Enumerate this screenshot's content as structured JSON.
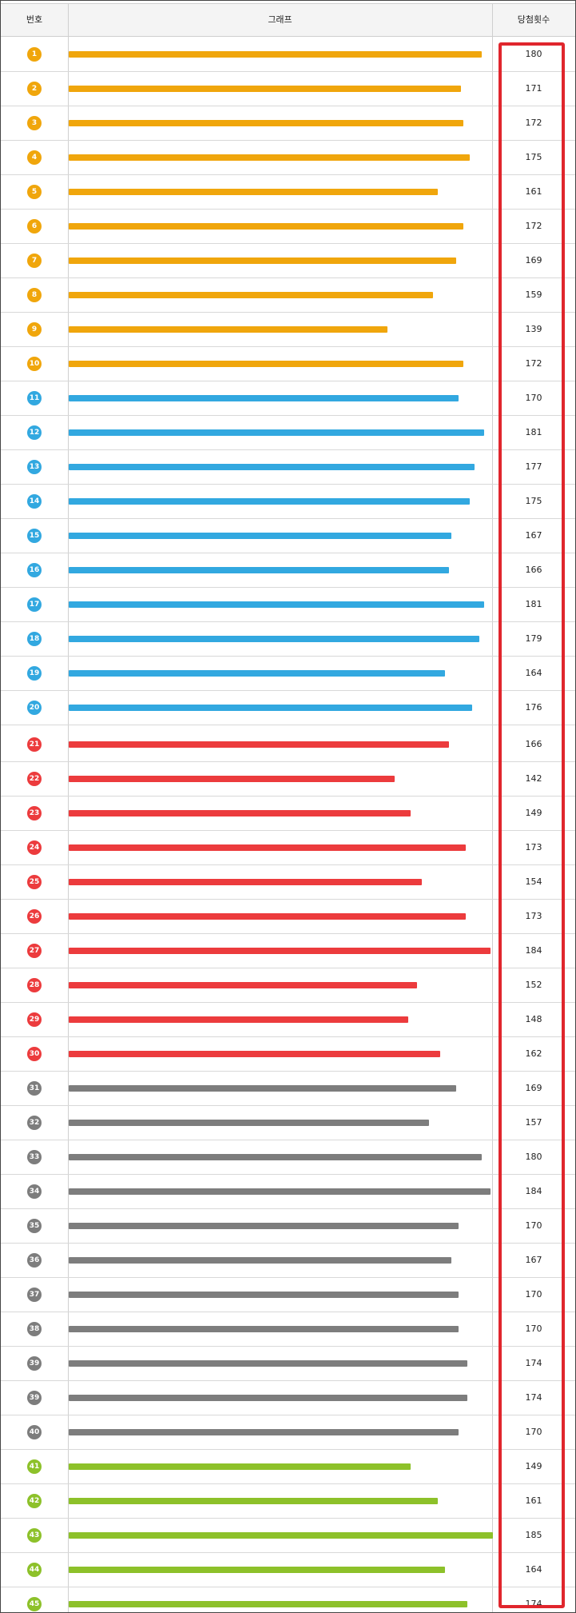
{
  "table": {
    "header": {
      "number": "번호",
      "graph": "그래프",
      "count": "당첨횟수"
    }
  },
  "chart_data": {
    "type": "bar",
    "orientation": "horizontal",
    "group_colors": [
      "#f0a60c",
      "#32a8e0",
      "#ec3b3d",
      "#7d7d7d",
      "#8dc12a"
    ],
    "rows": [
      {
        "label": "1",
        "value": 180,
        "group": 0
      },
      {
        "label": "2",
        "value": 171,
        "group": 0
      },
      {
        "label": "3",
        "value": 172,
        "group": 0
      },
      {
        "label": "4",
        "value": 175,
        "group": 0
      },
      {
        "label": "5",
        "value": 161,
        "group": 0
      },
      {
        "label": "6",
        "value": 172,
        "group": 0
      },
      {
        "label": "7",
        "value": 169,
        "group": 0
      },
      {
        "label": "8",
        "value": 159,
        "group": 0
      },
      {
        "label": "9",
        "value": 139,
        "group": 0
      },
      {
        "label": "10",
        "value": 172,
        "group": 0
      },
      {
        "label": "11",
        "value": 170,
        "group": 1
      },
      {
        "label": "12",
        "value": 181,
        "group": 1
      },
      {
        "label": "13",
        "value": 177,
        "group": 1
      },
      {
        "label": "14",
        "value": 175,
        "group": 1
      },
      {
        "label": "15",
        "value": 167,
        "group": 1
      },
      {
        "label": "16",
        "value": 166,
        "group": 1
      },
      {
        "label": "17",
        "value": 181,
        "group": 1
      },
      {
        "label": "18",
        "value": 179,
        "group": 1
      },
      {
        "label": "19",
        "value": 164,
        "group": 1
      },
      {
        "label": "20",
        "value": 176,
        "group": 1
      },
      {
        "label": "21",
        "value": 166,
        "group": 2
      },
      {
        "label": "22",
        "value": 142,
        "group": 2
      },
      {
        "label": "23",
        "value": 149,
        "group": 2
      },
      {
        "label": "24",
        "value": 173,
        "group": 2
      },
      {
        "label": "25",
        "value": 154,
        "group": 2
      },
      {
        "label": "26",
        "value": 173,
        "group": 2
      },
      {
        "label": "27",
        "value": 184,
        "group": 2
      },
      {
        "label": "28",
        "value": 152,
        "group": 2
      },
      {
        "label": "29",
        "value": 148,
        "group": 2
      },
      {
        "label": "30",
        "value": 162,
        "group": 2
      },
      {
        "label": "31",
        "value": 169,
        "group": 3
      },
      {
        "label": "32",
        "value": 157,
        "group": 3
      },
      {
        "label": "33",
        "value": 180,
        "group": 3
      },
      {
        "label": "34",
        "value": 184,
        "group": 3
      },
      {
        "label": "35",
        "value": 170,
        "group": 3
      },
      {
        "label": "36",
        "value": 167,
        "group": 3
      },
      {
        "label": "37",
        "value": 170,
        "group": 3
      },
      {
        "label": "38",
        "value": 170,
        "group": 3
      },
      {
        "label": "39",
        "value": 174,
        "group": 3
      },
      {
        "label": "39",
        "value": 174,
        "group": 3
      },
      {
        "label": "40",
        "value": 170,
        "group": 3
      },
      {
        "label": "41",
        "value": 149,
        "group": 4
      },
      {
        "label": "42",
        "value": 161,
        "group": 4
      },
      {
        "label": "43",
        "value": 185,
        "group": 4
      },
      {
        "label": "44",
        "value": 164,
        "group": 4
      },
      {
        "label": "45",
        "value": 174,
        "group": 4
      }
    ],
    "xlim": [
      0,
      185
    ],
    "highlight_color": "#e0262d"
  }
}
